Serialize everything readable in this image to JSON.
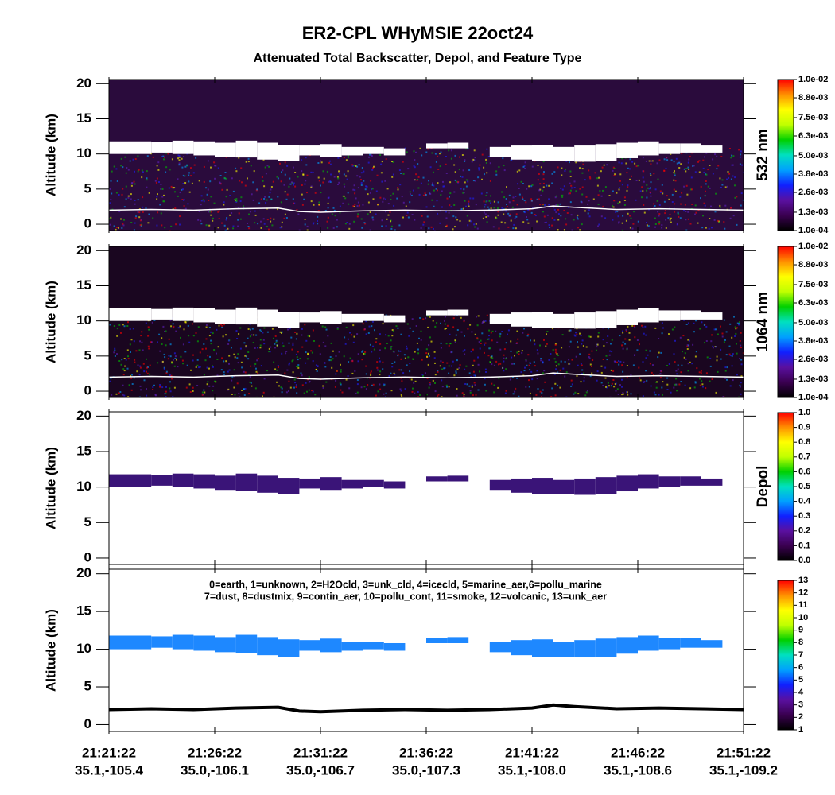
{
  "title": "ER2-CPL WHyMSIE 22oct24",
  "subtitle": "Attenuated Total Backscatter, Depol, and Feature Type",
  "x_axis": {
    "xlim": [
      0,
      30
    ],
    "xticks": [
      {
        "value": 0,
        "label": "21:21:22",
        "location": "35.1,-105.4"
      },
      {
        "value": 5,
        "label": "21:26:22",
        "location": "35.0,-106.1"
      },
      {
        "value": 10,
        "label": "21:31:22",
        "location": "35.0,-106.7"
      },
      {
        "value": 15,
        "label": "21:36:22",
        "location": "35.0,-107.3"
      },
      {
        "value": 20,
        "label": "21:41:22",
        "location": "35.1,-108.0"
      },
      {
        "value": 25,
        "label": "21:46:22",
        "location": "35.1,-108.6"
      },
      {
        "value": 30,
        "label": "21:51:22",
        "location": "35.1,-109.2"
      }
    ]
  },
  "colormap": [
    "#000000",
    "#3a0050",
    "#5a10a0",
    "#1020ff",
    "#00a0ff",
    "#00e0c0",
    "#00d000",
    "#c0ff00",
    "#ffff00",
    "#ff9000",
    "#ff0000"
  ],
  "cloud": {
    "x": [
      0,
      1,
      2,
      3,
      4,
      5,
      6,
      7,
      8,
      9,
      10,
      11,
      12,
      13,
      14,
      15,
      16,
      17,
      18,
      19,
      20,
      21,
      22,
      23,
      24,
      25,
      26,
      27,
      28
    ],
    "top": [
      11.8,
      11.8,
      11.7,
      11.9,
      11.8,
      11.6,
      11.9,
      11.6,
      11.3,
      11.2,
      11.4,
      11.0,
      11.0,
      10.8,
      null,
      11.5,
      11.6,
      null,
      11.0,
      11.2,
      11.3,
      11.0,
      11.2,
      11.4,
      11.6,
      11.8,
      11.5,
      11.5,
      11.2
    ],
    "base": [
      10.0,
      10.0,
      10.2,
      10.0,
      9.8,
      9.6,
      9.5,
      9.2,
      9.0,
      9.8,
      9.6,
      9.8,
      10.0,
      9.8,
      null,
      10.8,
      10.8,
      null,
      9.6,
      9.2,
      9.0,
      9.0,
      8.9,
      9.0,
      9.4,
      9.8,
      10.0,
      10.2,
      10.2
    ]
  },
  "surface": {
    "x": [
      0,
      2,
      4,
      6,
      8,
      9,
      10,
      12,
      14,
      16,
      18,
      20,
      21,
      22,
      24,
      26,
      28,
      30
    ],
    "altitude": [
      2.0,
      2.1,
      2.0,
      2.2,
      2.3,
      1.8,
      1.7,
      1.9,
      2.0,
      1.9,
      2.0,
      2.2,
      2.6,
      2.4,
      2.1,
      2.2,
      2.1,
      2.0
    ]
  },
  "chart_data": [
    {
      "type": "curtain",
      "ylabel": "Altitude (km)",
      "ylim": [
        -0.9,
        20.6
      ],
      "yticks": [
        0,
        5,
        10,
        15,
        20
      ],
      "background": "#2a0b3c",
      "speckle": true,
      "cloud_color": "#ffffff",
      "surface_color": "#ffffff",
      "colorbar": {
        "label": "532 nm",
        "clim": [
          0.0001,
          0.01
        ],
        "ticks": [
          {
            "value": 0.0001,
            "label": "1.0e-04"
          },
          {
            "value": 0.0013,
            "label": "1.3e-03"
          },
          {
            "value": 0.0026,
            "label": "2.6e-03"
          },
          {
            "value": 0.0038,
            "label": "3.8e-03"
          },
          {
            "value": 0.005,
            "label": "5.0e-03"
          },
          {
            "value": 0.0063,
            "label": "6.3e-03"
          },
          {
            "value": 0.0075,
            "label": "7.5e-03"
          },
          {
            "value": 0.0088,
            "label": "8.8e-03"
          },
          {
            "value": 0.01,
            "label": "1.0e-02"
          }
        ]
      }
    },
    {
      "type": "curtain",
      "ylabel": "Altitude (km)",
      "ylim": [
        -0.9,
        20.6
      ],
      "yticks": [
        0,
        5,
        10,
        15,
        20
      ],
      "background": "#1a0620",
      "speckle": true,
      "cloud_color": "#ffffff",
      "surface_color": "#ffffff",
      "colorbar": {
        "label": "1064 nm",
        "clim": [
          0.0001,
          0.01
        ],
        "ticks": [
          {
            "value": 0.0001,
            "label": "1.0e-04"
          },
          {
            "value": 0.0013,
            "label": "1.3e-03"
          },
          {
            "value": 0.0026,
            "label": "2.6e-03"
          },
          {
            "value": 0.0038,
            "label": "3.8e-03"
          },
          {
            "value": 0.005,
            "label": "5.0e-03"
          },
          {
            "value": 0.0063,
            "label": "6.3e-03"
          },
          {
            "value": 0.0075,
            "label": "7.5e-03"
          },
          {
            "value": 0.0088,
            "label": "8.8e-03"
          },
          {
            "value": 0.01,
            "label": "1.0e-02"
          }
        ]
      }
    },
    {
      "type": "curtain",
      "ylabel": "Altitude (km)",
      "ylim": [
        -0.9,
        20.6
      ],
      "yticks": [
        0,
        5,
        10,
        15,
        20
      ],
      "background": "#ffffff",
      "speckle": false,
      "cloud_color": "#3a1478",
      "colorbar": {
        "label": "Depol",
        "clim": [
          0,
          1
        ],
        "ticks": [
          {
            "value": 0,
            "label": "0.0"
          },
          0.1,
          0.2,
          0.3,
          0.4,
          0.5,
          0.6,
          0.7,
          0.8,
          0.9,
          {
            "value": 1,
            "label": "1.0"
          }
        ]
      }
    },
    {
      "type": "curtain",
      "ylabel": "Altitude (km)",
      "ylim": [
        -0.9,
        20.6
      ],
      "yticks": [
        0,
        5,
        10,
        15,
        20
      ],
      "background": "#ffffff",
      "speckle": false,
      "cloud_color": "#1e88ff",
      "surface_color": "#000000",
      "annotations": [
        "0=earth, 1=unknown, 2=H2Ocld, 3=unk_cld, 4=icecld, 5=marine_aer,6=pollu_marine",
        "7=dust, 8=dustmix, 9=contin_aer, 10=pollu_cont, 11=smoke, 12=volcanic, 13=unk_aer"
      ],
      "colorbar": {
        "clim": [
          1,
          13
        ],
        "ticks": [
          1,
          2,
          3,
          4,
          5,
          6,
          7,
          8,
          9,
          10,
          11,
          12,
          13
        ]
      }
    }
  ]
}
